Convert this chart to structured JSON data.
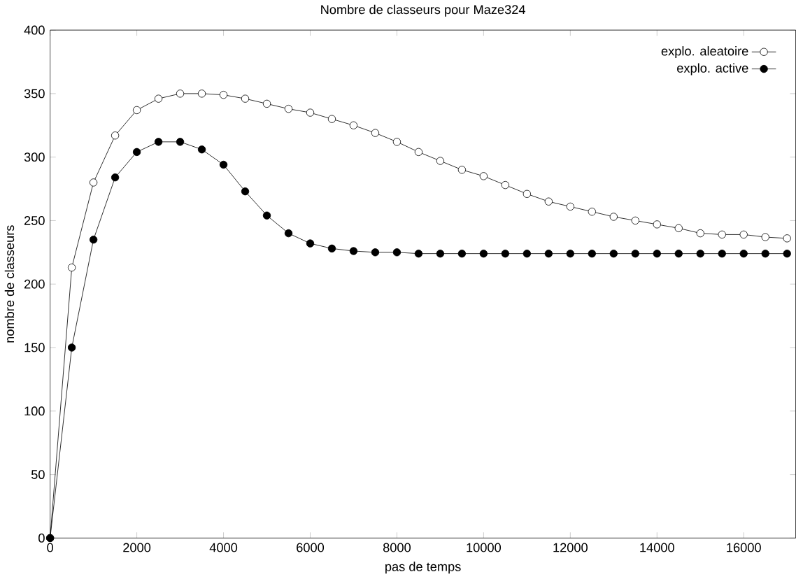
{
  "chart_data": {
    "type": "line",
    "title": "Nombre de classeurs pour Maze324",
    "xlabel": "pas de temps",
    "ylabel": "nombre de classeurs",
    "x": [
      0,
      500,
      1000,
      1500,
      2000,
      2500,
      3000,
      3500,
      4000,
      4500,
      5000,
      5500,
      6000,
      6500,
      7000,
      7500,
      8000,
      8500,
      9000,
      9500,
      10000,
      10500,
      11000,
      11500,
      12000,
      12500,
      13000,
      13500,
      14000,
      14500,
      15000,
      15500,
      16000,
      16500,
      17000
    ],
    "series": [
      {
        "name": "explo. aleatoire",
        "color": "#000000",
        "values": [
          0,
          213,
          280,
          317,
          337,
          346,
          350,
          350,
          349,
          346,
          342,
          338,
          335,
          330,
          325,
          319,
          312,
          304,
          297,
          290,
          285,
          278,
          271,
          265,
          261,
          257,
          253,
          250,
          247,
          244,
          240,
          239,
          239,
          237,
          236
        ]
      },
      {
        "name": "explo. active",
        "color": "#000000",
        "values": [
          0,
          150,
          235,
          284,
          304,
          312,
          312,
          306,
          294,
          273,
          254,
          240,
          232,
          228,
          226,
          225,
          225,
          224,
          224,
          224,
          224,
          224,
          224,
          224,
          224,
          224,
          224,
          224,
          224,
          224,
          224,
          224,
          224,
          224,
          224
        ]
      }
    ],
    "xlim": [
      0,
      17200
    ],
    "ylim": [
      0,
      400
    ],
    "xticks": [
      0,
      2000,
      4000,
      6000,
      8000,
      10000,
      12000,
      14000,
      16000
    ],
    "yticks": [
      0,
      50,
      100,
      150,
      200,
      250,
      300,
      350,
      400
    ],
    "grid": false,
    "legend": "top right",
    "marker": "circle",
    "line_style": "solid"
  }
}
